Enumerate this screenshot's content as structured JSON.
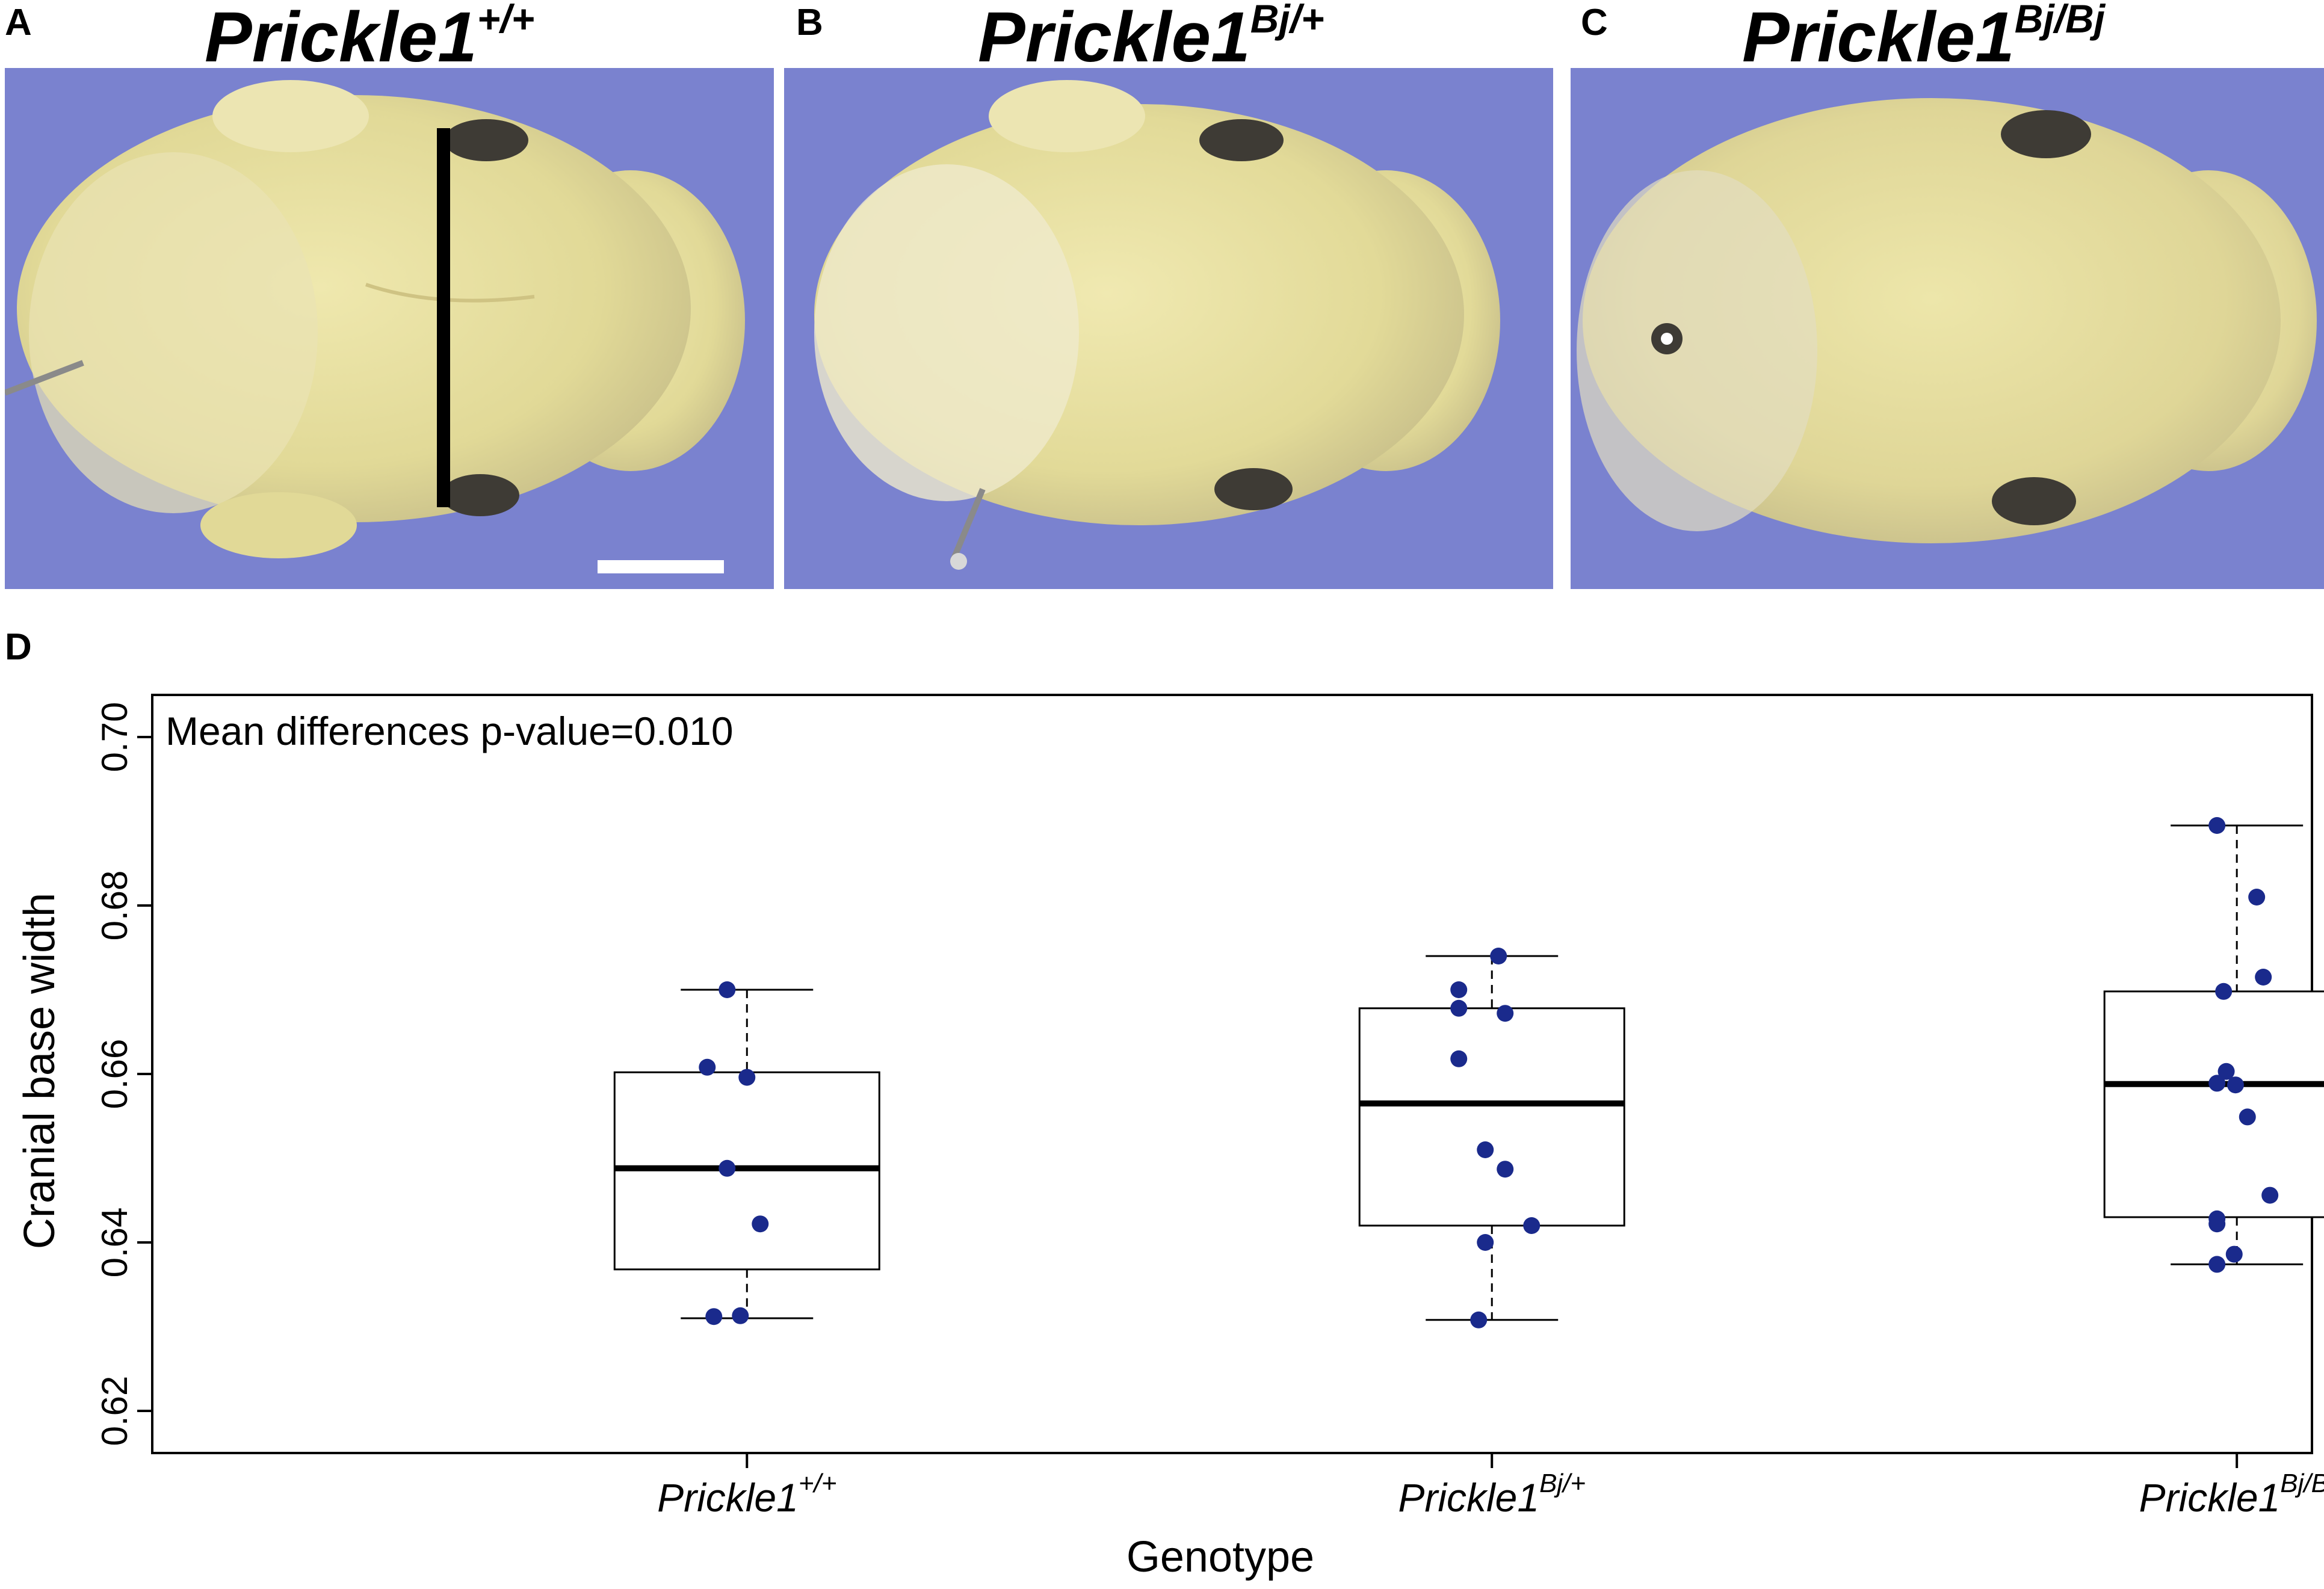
{
  "panels": [
    {
      "letter": "A",
      "gene": "Prickle1",
      "allele": "+/+"
    },
    {
      "letter": "B",
      "gene": "Prickle1",
      "allele": "Bj/+"
    },
    {
      "letter": "C",
      "gene": "Prickle1",
      "allele": "Bj/Bj"
    }
  ],
  "chart_panel_letter": "D",
  "colors": {
    "background_blue": "#7a82cf",
    "tissue": "#e6dfa3",
    "point": "#1a2a8c"
  },
  "chart_data": {
    "type": "box",
    "annotation": "Mean differences p-value=0.010",
    "xlabel": "Genotype",
    "ylabel": "Cranial base width",
    "ylim": [
      0.615,
      0.705
    ],
    "yticks": [
      "0.62",
      "0.64",
      "0.66",
      "0.68",
      "0.70"
    ],
    "ytick_values": [
      0.62,
      0.64,
      0.66,
      0.68,
      0.7
    ],
    "grid": false,
    "categories": [
      {
        "gene": "Prickle1",
        "allele": "+/+"
      },
      {
        "gene": "Prickle1",
        "allele": "Bj/+"
      },
      {
        "gene": "Prickle1",
        "allele": "Bj/Bj"
      }
    ],
    "boxes": [
      {
        "whisker_low": 0.631,
        "q1": 0.6368,
        "median": 0.6488,
        "q3": 0.6602,
        "whisker_high": 0.67
      },
      {
        "whisker_low": 0.6308,
        "q1": 0.642,
        "median": 0.6565,
        "q3": 0.6678,
        "whisker_high": 0.674
      },
      {
        "whisker_low": 0.6374,
        "q1": 0.643,
        "median": 0.6588,
        "q3": 0.6698,
        "whisker_high": 0.6895
      }
    ],
    "points": [
      [
        0.67,
        0.6608,
        0.6596,
        0.6488,
        0.6422,
        0.6312,
        0.6313
      ],
      [
        0.674,
        0.67,
        0.6678,
        0.6672,
        0.6618,
        0.651,
        0.6487,
        0.642,
        0.64,
        0.6308
      ],
      [
        0.6895,
        0.681,
        0.6715,
        0.6698,
        0.6603,
        0.6589,
        0.6587,
        0.6549,
        0.6456,
        0.6428,
        0.6422,
        0.6386,
        0.6374
      ]
    ],
    "point_jitter": [
      [
        -0.15,
        -0.3,
        0.0,
        -0.15,
        0.1,
        -0.25,
        -0.05
      ],
      [
        0.05,
        -0.25,
        -0.25,
        0.1,
        -0.25,
        -0.05,
        0.1,
        0.3,
        -0.05,
        -0.1
      ],
      [
        -0.15,
        0.15,
        0.2,
        -0.1,
        -0.08,
        -0.15,
        -0.01,
        0.08,
        0.25,
        -0.15,
        -0.15,
        -0.02,
        -0.15
      ]
    ]
  }
}
